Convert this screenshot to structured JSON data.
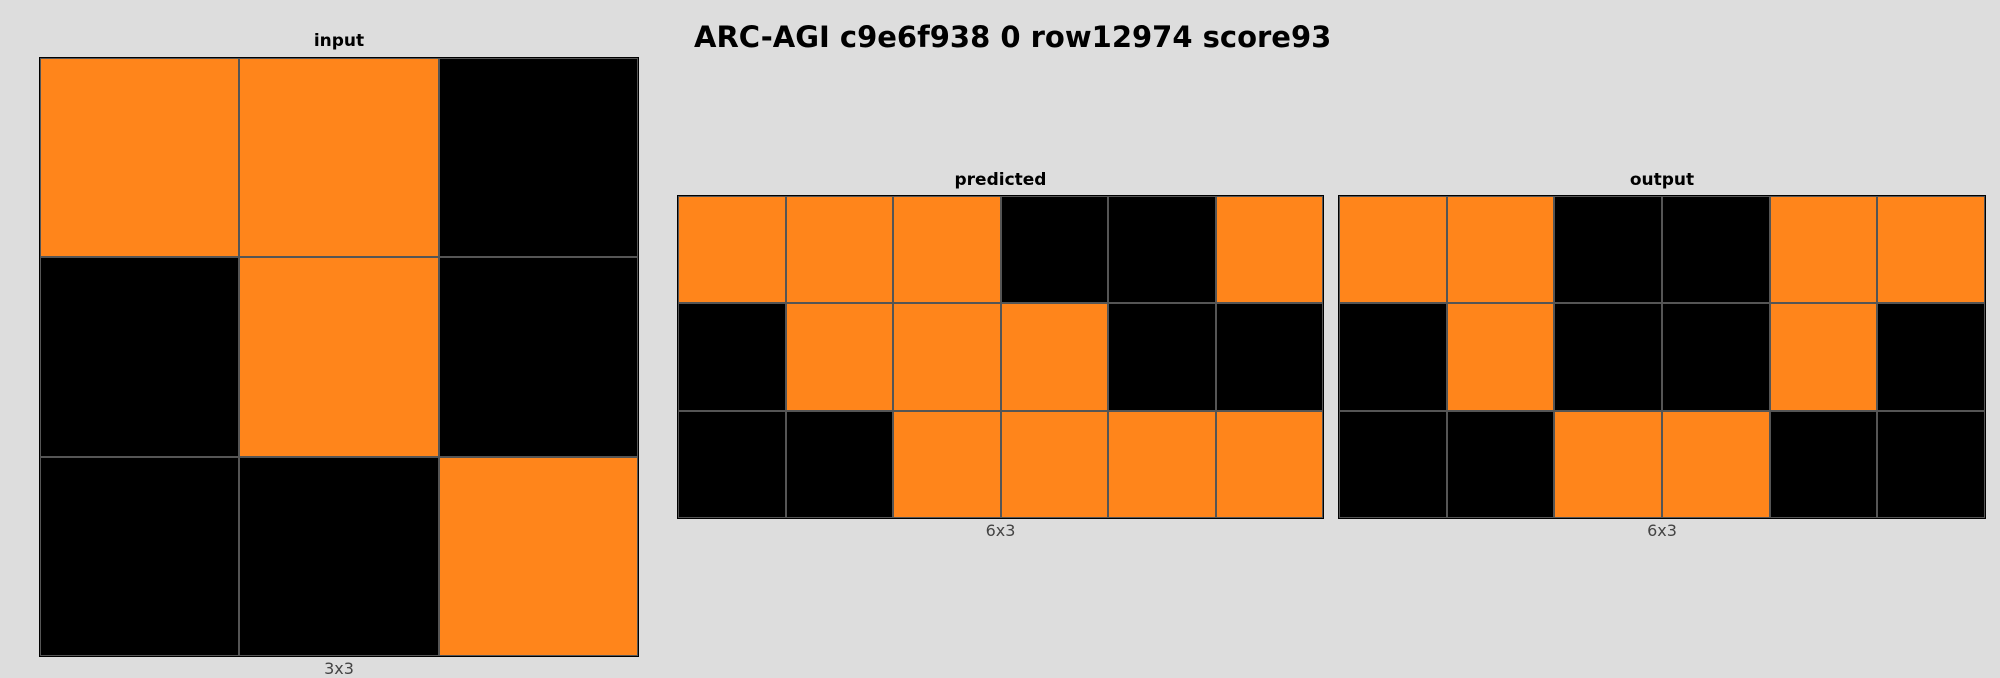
{
  "title": "ARC-AGI c9e6f938 0 row12974 score93",
  "palette": {
    "0": "#000000",
    "7": "#FF851B"
  },
  "panels": {
    "input": {
      "label": "input",
      "dims": "3x3",
      "grid": [
        [
          7,
          7,
          0
        ],
        [
          0,
          7,
          0
        ],
        [
          0,
          0,
          7
        ]
      ]
    },
    "predicted": {
      "label": "predicted",
      "dims": "6x3",
      "grid": [
        [
          7,
          7,
          7,
          0,
          0,
          7
        ],
        [
          0,
          7,
          7,
          7,
          0,
          0
        ],
        [
          0,
          0,
          7,
          7,
          7,
          7
        ]
      ]
    },
    "output": {
      "label": "output",
      "dims": "6x3",
      "grid": [
        [
          7,
          7,
          0,
          0,
          7,
          7
        ],
        [
          0,
          7,
          0,
          0,
          7,
          0
        ],
        [
          0,
          0,
          7,
          7,
          0,
          0
        ]
      ]
    }
  }
}
